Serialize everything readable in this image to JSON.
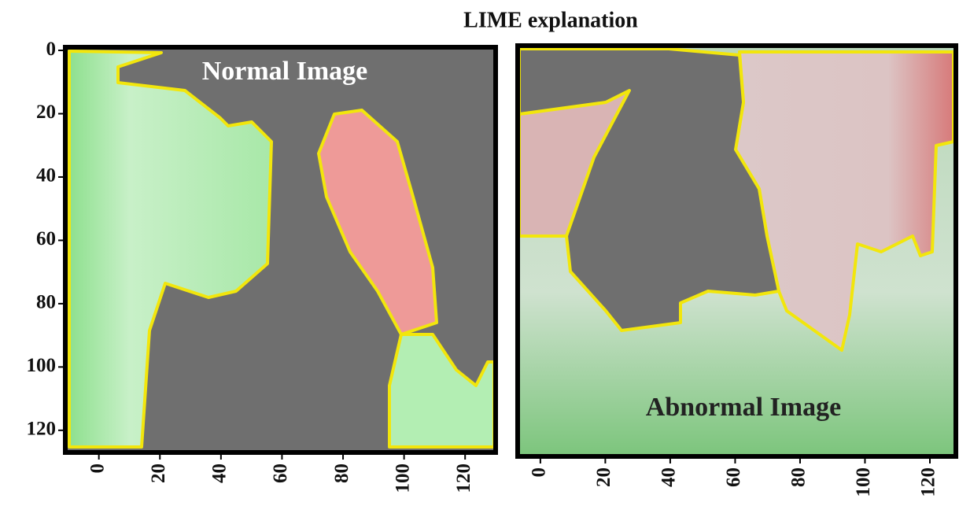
{
  "chart_data": [
    {
      "type": "image",
      "title": "LIME explanation",
      "annotation": "Normal Image",
      "xlim": [
        -11,
        130
      ],
      "ylim": [
        127,
        -1
      ],
      "xticks": [
        0,
        20,
        40,
        60,
        80,
        100,
        120
      ],
      "yticks": [
        0,
        20,
        40,
        60,
        80,
        100,
        120
      ]
    },
    {
      "type": "image",
      "annotation": "Abnormal Image",
      "xlim": [
        -7,
        128
      ],
      "xticks": [
        0,
        20,
        40,
        60,
        80,
        100,
        120
      ]
    }
  ]
}
